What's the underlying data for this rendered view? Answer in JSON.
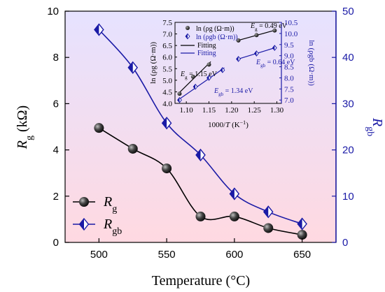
{
  "chart_data": [
    {
      "type": "line",
      "x": [
        500,
        525,
        550,
        575,
        600,
        625,
        650
      ],
      "xlabel": "Temperature (°C)",
      "xlim": [
        475,
        675
      ],
      "xticks": [
        500,
        550,
        600,
        650
      ],
      "series": [
        {
          "name": "Rg",
          "name_main": "R",
          "name_sub": "g",
          "axis": "left",
          "color": "#000000",
          "marker": "sphere",
          "values": [
            4.95,
            4.05,
            3.2,
            1.12,
            1.12,
            0.62,
            0.33
          ]
        },
        {
          "name": "Rgb",
          "name_main": "R",
          "name_sub": "gb",
          "axis": "right",
          "color": "#1a1aa6",
          "marker": "diamond-half",
          "values": [
            46.0,
            37.8,
            25.8,
            18.9,
            10.5,
            6.6,
            4.0
          ]
        }
      ],
      "y_left": {
        "label_main": "R",
        "label_sub": "g",
        "label_unit": " (kΩ)",
        "ylim": [
          0,
          10
        ],
        "ticks": [
          0,
          2,
          4,
          6,
          8,
          10
        ],
        "color": "#000000"
      },
      "y_right": {
        "label_main": "R",
        "label_sub": "gb",
        "label_unit": "",
        "ylim": [
          0,
          50
        ],
        "ticks": [
          0,
          10,
          20,
          30,
          40,
          50
        ],
        "color": "#1a1aa6"
      },
      "background_gradient": [
        "#e6e2ff",
        "#ffd9e1"
      ],
      "legend": {
        "placement": "bottom-left"
      }
    },
    {
      "type": "scatter",
      "xlabel_prefix": "1000/",
      "xlabel_var": "T",
      "xlabel_unit": " (K",
      "xlabel_unit_sup": "−1",
      "xlabel_close": ")",
      "xlim": [
        1.075,
        1.31
      ],
      "xticks": [
        "1.10",
        "1.15",
        "1.20",
        "1.25",
        "1.30"
      ],
      "y_left": {
        "label": "ln (ρg (Ω·m))",
        "ylim": [
          4.0,
          7.5
        ],
        "ticks": [
          "4.0",
          "4.5",
          "5.0",
          "5.5",
          "6.0",
          "6.5",
          "7.0",
          "7.5"
        ]
      },
      "y_right": {
        "label": "ln (ρgb (Ω·m))",
        "ylim": [
          6.85,
          10.5
        ],
        "ticks": [
          "7.0",
          "7.5",
          "8.0",
          "8.5",
          "9.0",
          "9.5",
          "10.0",
          "10.5"
        ],
        "color": "#1a1aa6"
      },
      "series": [
        {
          "name": "ln (ρg (Ω·m))",
          "axis": "left",
          "color": "#000000",
          "low_T": {
            "x": [
              1.085,
              1.115,
              1.15
            ],
            "y": [
              4.42,
              5.15,
              5.68
            ]
          },
          "high_T": {
            "x": [
              1.215,
              1.255,
              1.295
            ],
            "y": [
              6.72,
              6.95,
              7.15
            ]
          }
        },
        {
          "name": "ln (ρgb (Ω·m))",
          "axis": "right",
          "color": "#1a1aa6",
          "low_T": {
            "x": [
              1.085,
              1.12,
              1.15,
              1.18
            ],
            "y": [
              7.0,
              7.6,
              8.0,
              8.35
            ]
          },
          "high_T": {
            "x": [
              1.215,
              1.255,
              1.295
            ],
            "y": [
              8.85,
              9.1,
              9.35
            ]
          }
        }
      ],
      "fits": [
        {
          "name": "Fitting",
          "color": "#000000"
        },
        {
          "name": "Fitting",
          "color": "#1a1aa6"
        }
      ],
      "annotations": [
        {
          "var": "E",
          "sub": "g",
          "text": " = 0.49 eV",
          "color": "#000000"
        },
        {
          "var": "E",
          "sub": "gb",
          "text": " = 0.64 eV",
          "color": "#1a1aa6"
        },
        {
          "var": "E",
          "sub": "g",
          "text": " = 1.15 eV",
          "color": "#000000"
        },
        {
          "var": "E",
          "sub": "gb",
          "text": " = 1.34 eV",
          "color": "#1a1aa6"
        }
      ]
    }
  ]
}
